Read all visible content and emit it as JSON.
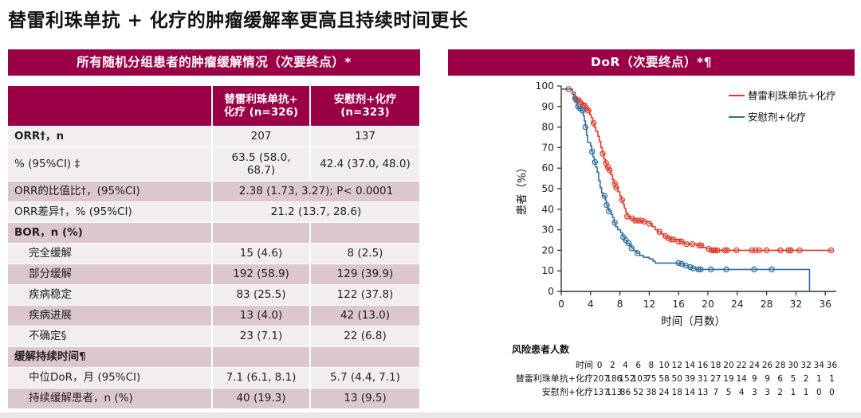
{
  "title": "替雷利珠单抗 + 化疗的肿瘤缓解率更高且持续时间更长",
  "colors": {
    "accent": "#9B0046",
    "row_dark": "#DCC7CE",
    "row_light": "#F2EDEF",
    "red": "#DF3B2A",
    "blue": "#2E6F9E"
  },
  "left_panel": {
    "header": "所有随机分组患者的肿瘤缓解情况（次要终点）*",
    "table": {
      "col_headers": [
        "",
        "替雷利珠单抗+\n化疗 (n=326)",
        "安慰剂+化疗\n(n=323)"
      ],
      "rows": [
        {
          "label": "ORR†，n",
          "bold": true,
          "shade": "light",
          "cells": [
            "207",
            "137"
          ]
        },
        {
          "label": "% (95%CI) ‡",
          "shade": "light",
          "h": 42,
          "cells": [
            "63.5 (58.0,\n68.7)",
            "42.4 (37.0, 48.0)"
          ]
        },
        {
          "label": "ORR的比值比†，(95%CI)",
          "shade": "dark",
          "merged": "2.38 (1.73, 3.27);  P< 0.0001"
        },
        {
          "label": "ORR差异†，% (95%CI)",
          "shade": "light",
          "merged": "21.2 (13.7, 28.6)"
        },
        {
          "label": "BOR，n (%)",
          "bold": true,
          "shade": "dark",
          "cells": [
            "",
            ""
          ]
        },
        {
          "label": "完全缓解",
          "indent": true,
          "shade": "light",
          "cells": [
            "15 (4.6)",
            "8 (2.5)"
          ]
        },
        {
          "label": "部分缓解",
          "indent": true,
          "shade": "dark",
          "cells": [
            "192 (58.9)",
            "129 (39.9)"
          ]
        },
        {
          "label": "疾病稳定",
          "indent": true,
          "shade": "light",
          "cells": [
            "83 (25.5)",
            "122 (37.8)"
          ]
        },
        {
          "label": "疾病进展",
          "indent": true,
          "shade": "dark",
          "cells": [
            "13 (4.0)",
            "42 (13.0)"
          ]
        },
        {
          "label": "不确定§",
          "indent": true,
          "shade": "light",
          "cells": [
            "23 (7.1)",
            "22 (6.8)"
          ]
        },
        {
          "label": "缓解持续时间¶",
          "bold": true,
          "shade": "dark",
          "cells": [
            "",
            ""
          ]
        },
        {
          "label": "中位DoR，月 (95%CI)",
          "indent": true,
          "shade": "light",
          "cells": [
            "7.1 (6.1, 8.1)",
            "5.7 (4.4, 7.1)"
          ]
        },
        {
          "label": "持续缓解患者，n (%)",
          "indent": true,
          "shade": "dark",
          "cells": [
            "40 (19.3)",
            "13 (9.5)"
          ]
        }
      ]
    }
  },
  "right_panel": {
    "header": "DoR（次要终点）*¶",
    "risk_table": {
      "title": "风险患者人数",
      "time_label": "时间",
      "times": [
        0,
        2,
        4,
        6,
        8,
        10,
        12,
        14,
        16,
        18,
        20,
        22,
        24,
        26,
        28,
        30,
        32,
        34,
        36
      ],
      "rows": [
        {
          "label": "替雷利珠单抗+化疗",
          "values": [
            207,
            186,
            152,
            103,
            75,
            58,
            50,
            39,
            31,
            27,
            19,
            14,
            9,
            9,
            6,
            5,
            2,
            1,
            1
          ]
        },
        {
          "label": "安慰剂+化疗",
          "values": [
            137,
            113,
            86,
            52,
            38,
            24,
            18,
            14,
            13,
            7,
            5,
            4,
            3,
            3,
            2,
            1,
            1,
            0,
            0
          ]
        }
      ]
    }
  },
  "chart_data": {
    "type": "line",
    "subtype": "kaplan-meier",
    "title": "DoR（次要终点）*¶",
    "xlabel": "时间（月数）",
    "ylabel": "患者（%）",
    "xlim": [
      0,
      37.5
    ],
    "ylim": [
      0,
      100
    ],
    "xticks": [
      0,
      4,
      8,
      12,
      16,
      20,
      24,
      28,
      32,
      36
    ],
    "yticks": [
      0,
      10,
      20,
      30,
      40,
      50,
      60,
      70,
      80,
      90,
      100
    ],
    "grid": false,
    "legend_position": "top-right",
    "series": [
      {
        "name": "替雷利珠单抗+化疗",
        "color": "#DF3B2A",
        "median_months": 7.1,
        "steps": [
          [
            0,
            98.5
          ],
          [
            1.5,
            97
          ],
          [
            1.9,
            94.5
          ],
          [
            2.1,
            93
          ],
          [
            2.5,
            92
          ],
          [
            3.0,
            90.5
          ],
          [
            3.3,
            89
          ],
          [
            3.6,
            88
          ],
          [
            3.9,
            86
          ],
          [
            4.1,
            84.5
          ],
          [
            4.3,
            82
          ],
          [
            4.5,
            80
          ],
          [
            4.7,
            78
          ],
          [
            5.0,
            75.5
          ],
          [
            5.2,
            73
          ],
          [
            5.4,
            70
          ],
          [
            5.6,
            67
          ],
          [
            5.8,
            64.5
          ],
          [
            6.0,
            62.5
          ],
          [
            6.2,
            60.5
          ],
          [
            6.4,
            59
          ],
          [
            6.7,
            57
          ],
          [
            7.0,
            54.5
          ],
          [
            7.2,
            52.5
          ],
          [
            7.4,
            50.5
          ],
          [
            7.7,
            48.5
          ],
          [
            8.0,
            46.5
          ],
          [
            8.2,
            44.5
          ],
          [
            8.4,
            42.5
          ],
          [
            8.6,
            40.5
          ],
          [
            8.8,
            38.5
          ],
          [
            9.0,
            36.5
          ],
          [
            9.4,
            35.5
          ],
          [
            10.0,
            34.5
          ],
          [
            11.0,
            34
          ],
          [
            12.0,
            33
          ],
          [
            12.4,
            31.5
          ],
          [
            12.8,
            30
          ],
          [
            13.2,
            29
          ],
          [
            13.6,
            28
          ],
          [
            14.0,
            27
          ],
          [
            14.5,
            26
          ],
          [
            15.0,
            25.3
          ],
          [
            16.0,
            24.3
          ],
          [
            16.6,
            23.4
          ],
          [
            17.0,
            23
          ],
          [
            18.5,
            22.4
          ],
          [
            19.2,
            21.4
          ],
          [
            19.8,
            20.7
          ],
          [
            20.4,
            20
          ],
          [
            37.0,
            20
          ]
        ],
        "censor_times": [
          1.0,
          2.1,
          2.4,
          2.6,
          3.0,
          3.2,
          3.45,
          3.7,
          4.4,
          5.65,
          6.1,
          6.35,
          6.6,
          7.3,
          7.5,
          8.3,
          9.0,
          9.7,
          10.1,
          10.5,
          10.9,
          11.3,
          12.0,
          13.4,
          14.2,
          14.6,
          15.0,
          15.3,
          16.0,
          16.4,
          17.1,
          17.9,
          18.8,
          19.1,
          20.1,
          20.5,
          20.8,
          21.0,
          21.3,
          22.3,
          22.6,
          23.9,
          26.0,
          26.5,
          27.0,
          28.0,
          29.9,
          31.0,
          31.3,
          32.5,
          36.8
        ]
      },
      {
        "name": "安慰剂+化疗",
        "color": "#2E6F9E",
        "median_months": 5.7,
        "steps": [
          [
            0,
            98.5
          ],
          [
            1.5,
            96
          ],
          [
            1.7,
            94
          ],
          [
            2.0,
            92
          ],
          [
            2.2,
            90
          ],
          [
            2.4,
            89
          ],
          [
            2.7,
            88
          ],
          [
            3.0,
            85.5
          ],
          [
            3.15,
            83
          ],
          [
            3.3,
            80
          ],
          [
            3.45,
            76
          ],
          [
            3.6,
            72.5
          ],
          [
            4.0,
            71
          ],
          [
            4.15,
            68
          ],
          [
            4.3,
            65.5
          ],
          [
            4.5,
            63
          ],
          [
            4.7,
            60.5
          ],
          [
            4.9,
            58
          ],
          [
            5.1,
            54
          ],
          [
            5.3,
            50.5
          ],
          [
            5.5,
            48
          ],
          [
            5.7,
            46.5
          ],
          [
            6.0,
            44.5
          ],
          [
            6.15,
            42
          ],
          [
            6.3,
            40.5
          ],
          [
            6.5,
            39
          ],
          [
            6.8,
            37.5
          ],
          [
            7.0,
            36
          ],
          [
            7.2,
            33.5
          ],
          [
            7.4,
            31.5
          ],
          [
            7.7,
            30
          ],
          [
            8.1,
            28.5
          ],
          [
            8.4,
            26.5
          ],
          [
            8.6,
            25
          ],
          [
            8.9,
            23.5
          ],
          [
            9.3,
            22.5
          ],
          [
            9.6,
            21
          ],
          [
            9.9,
            19.8
          ],
          [
            10.3,
            18.6
          ],
          [
            10.7,
            17.5
          ],
          [
            11.2,
            16.6
          ],
          [
            12.0,
            15.8
          ],
          [
            12.5,
            14.8
          ],
          [
            12.8,
            13.8
          ],
          [
            16.2,
            13.4
          ],
          [
            16.8,
            12.6
          ],
          [
            17.3,
            11.8
          ],
          [
            17.9,
            11.2
          ],
          [
            18.4,
            10.7
          ],
          [
            33.8,
            10.7
          ],
          [
            33.85,
            0
          ]
        ],
        "censor_times": [
          1.9,
          2.3,
          2.6,
          2.9,
          3.3,
          4.2,
          4.6,
          5.9,
          6.2,
          6.5,
          7.3,
          8.45,
          8.8,
          9.2,
          9.6,
          10.4,
          16.0,
          16.4,
          17.0,
          17.6,
          18.0,
          18.7,
          19.0,
          20.4,
          22.5,
          26.3,
          28.7
        ]
      }
    ]
  }
}
